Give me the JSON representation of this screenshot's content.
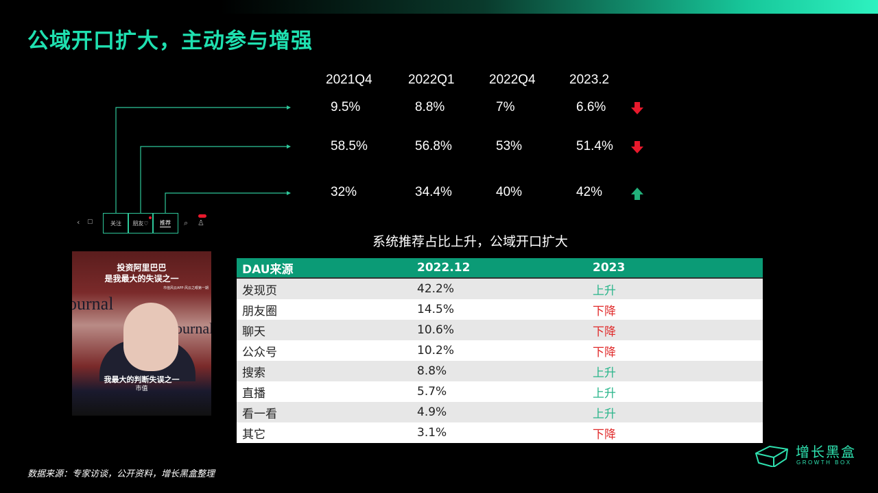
{
  "header": {
    "title": "公域开口扩大，主动参与增强"
  },
  "periods": [
    "2021Q4",
    "2022Q1",
    "2022Q4",
    "2023.2"
  ],
  "rows": [
    {
      "values": [
        "9.5%",
        "8.8%",
        "7%",
        "6.6%"
      ],
      "trend": "down",
      "trend_icon": "arrow-down-icon",
      "trend_color": "#e8192c"
    },
    {
      "values": [
        "58.5%",
        "56.8%",
        "53%",
        "51.4%"
      ],
      "trend": "down",
      "trend_icon": "arrow-down-icon",
      "trend_color": "#e8192c"
    },
    {
      "values": [
        "32%",
        "34.4%",
        "40%",
        "42%"
      ],
      "trend": "up",
      "trend_icon": "arrow-up-icon",
      "trend_color": "#22b07a"
    }
  ],
  "caption": "系统推荐占比上升，公域开口扩大",
  "phone_tabs": [
    "关注",
    "朋友♡",
    "推荐"
  ],
  "video": {
    "title_line1": "投资阿里巴巴",
    "title_line2": "是我最大的失误之一",
    "tag": "市值风云APP·风云之眼第一期",
    "bg_word1": "ournal",
    "bg_word2": "ournal",
    "subtitle": "我最大的判断失误之一",
    "brand": "市值"
  },
  "dau_table": {
    "headers": [
      "DAU来源",
      "2022.12",
      "2023"
    ],
    "rows": [
      [
        "发现页",
        "42.2%",
        "上升"
      ],
      [
        "朋友圈",
        "14.5%",
        "下降"
      ],
      [
        "聊天",
        "10.6%",
        "下降"
      ],
      [
        "公众号",
        "10.2%",
        "下降"
      ],
      [
        "搜索",
        "8.8%",
        "上升"
      ],
      [
        "直播",
        "5.7%",
        "上升"
      ],
      [
        "看一看",
        "4.9%",
        "上升"
      ],
      [
        "其它",
        "3.1%",
        "下降"
      ]
    ]
  },
  "source_note": "数据来源：专家访谈，公开资料，增长黑盒整理",
  "logo": {
    "cn": "增长黑盒",
    "en": "GROWTH BOX",
    "icon": "box-logo-icon"
  },
  "colors": {
    "accent": "#1fe0b0",
    "table_header": "#0b9b76",
    "up": "#29b58a",
    "down": "#e02a2a"
  }
}
